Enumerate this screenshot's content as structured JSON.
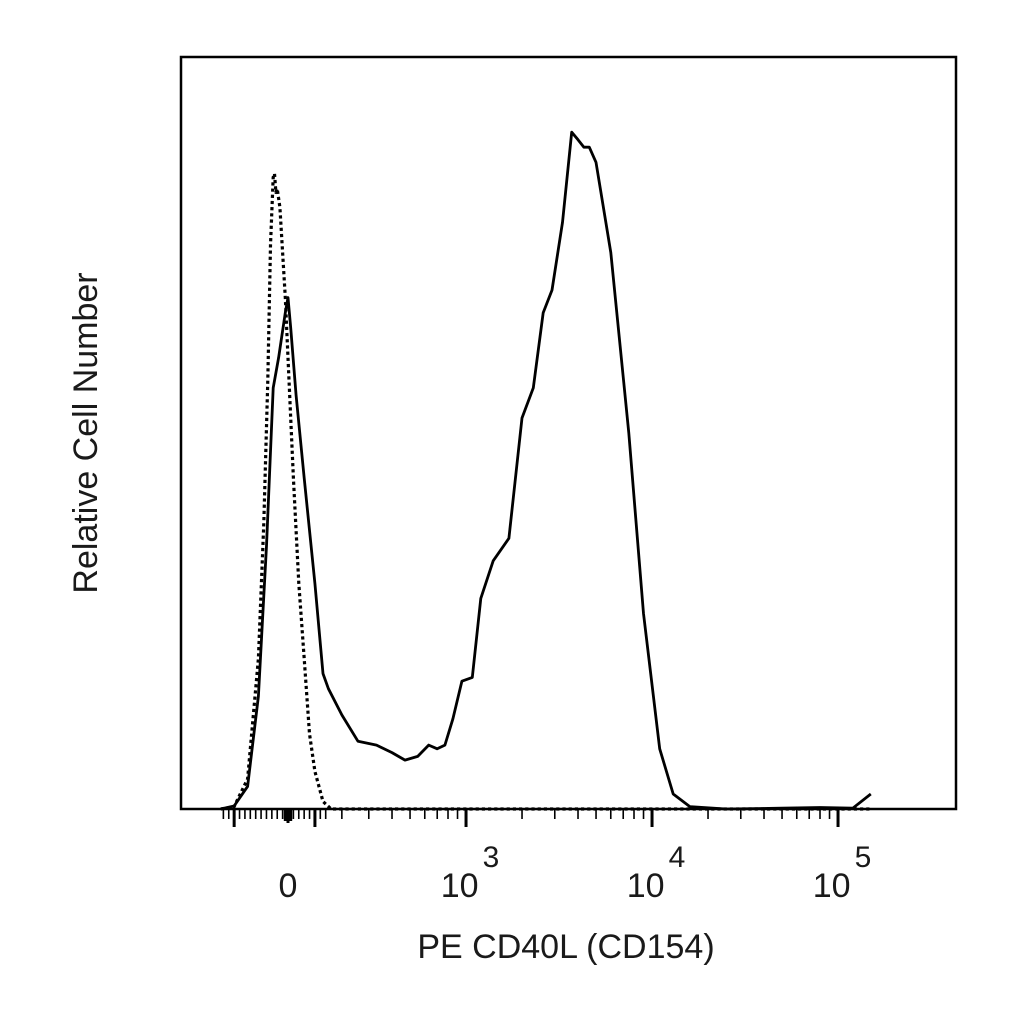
{
  "chart_data": {
    "type": "area",
    "xlabel": "PE CD40L (CD154)",
    "ylabel": "Relative Cell Number",
    "x_scale": "biexponential",
    "xlim": [
      -250,
      150000
    ],
    "ylim": [
      0,
      100
    ],
    "x_ticks": [
      {
        "value": 0,
        "base": "0",
        "exp": ""
      },
      {
        "value": 1000,
        "base": "10",
        "exp": "3"
      },
      {
        "value": 10000,
        "base": "10",
        "exp": "4"
      },
      {
        "value": 100000,
        "base": "10",
        "exp": "5"
      }
    ],
    "grid": false,
    "legend": "none",
    "series": [
      {
        "style": "solid",
        "color": "#000000",
        "points": [
          [
            -250,
            0
          ],
          [
            -200,
            0.4
          ],
          [
            -150,
            3
          ],
          [
            -110,
            15
          ],
          [
            -80,
            35
          ],
          [
            -55,
            56
          ],
          [
            -35,
            60
          ],
          [
            -10,
            66
          ],
          [
            0,
            68
          ],
          [
            10,
            64
          ],
          [
            30,
            55
          ],
          [
            60,
            44
          ],
          [
            100,
            30
          ],
          [
            130,
            18
          ],
          [
            150,
            16
          ],
          [
            200,
            12.5
          ],
          [
            260,
            9
          ],
          [
            330,
            8.5
          ],
          [
            400,
            7.5
          ],
          [
            470,
            6.5
          ],
          [
            550,
            7
          ],
          [
            630,
            8.5
          ],
          [
            700,
            8
          ],
          [
            770,
            8.5
          ],
          [
            850,
            12
          ],
          [
            950,
            17
          ],
          [
            1080,
            17.5
          ],
          [
            1200,
            28
          ],
          [
            1400,
            33
          ],
          [
            1700,
            36
          ],
          [
            2000,
            52
          ],
          [
            2300,
            56
          ],
          [
            2600,
            66
          ],
          [
            2900,
            69
          ],
          [
            3300,
            78
          ],
          [
            3700,
            90
          ],
          [
            4000,
            89
          ],
          [
            4300,
            88
          ],
          [
            4600,
            88
          ],
          [
            5000,
            86
          ],
          [
            6000,
            74
          ],
          [
            7500,
            50
          ],
          [
            9000,
            26
          ],
          [
            11000,
            8
          ],
          [
            13000,
            2
          ],
          [
            16000,
            0.3
          ],
          [
            25000,
            0
          ],
          [
            50000,
            0.1
          ],
          [
            80000,
            0.2
          ],
          [
            120000,
            0.1
          ],
          [
            150000,
            2
          ]
        ]
      },
      {
        "style": "dotted",
        "color": "#000000",
        "points": [
          [
            -250,
            0
          ],
          [
            -200,
            0.3
          ],
          [
            -150,
            4
          ],
          [
            -110,
            20
          ],
          [
            -90,
            38
          ],
          [
            -75,
            57
          ],
          [
            -65,
            75
          ],
          [
            -55,
            84
          ],
          [
            -50,
            84.5
          ],
          [
            -45,
            82
          ],
          [
            -40,
            82.5
          ],
          [
            -30,
            80
          ],
          [
            -20,
            74
          ],
          [
            -10,
            68
          ],
          [
            0,
            60
          ],
          [
            20,
            44
          ],
          [
            40,
            30
          ],
          [
            60,
            20
          ],
          [
            80,
            10
          ],
          [
            100,
            5
          ],
          [
            130,
            1
          ],
          [
            160,
            0
          ],
          [
            1000,
            0
          ],
          [
            150000,
            0
          ]
        ]
      }
    ]
  }
}
